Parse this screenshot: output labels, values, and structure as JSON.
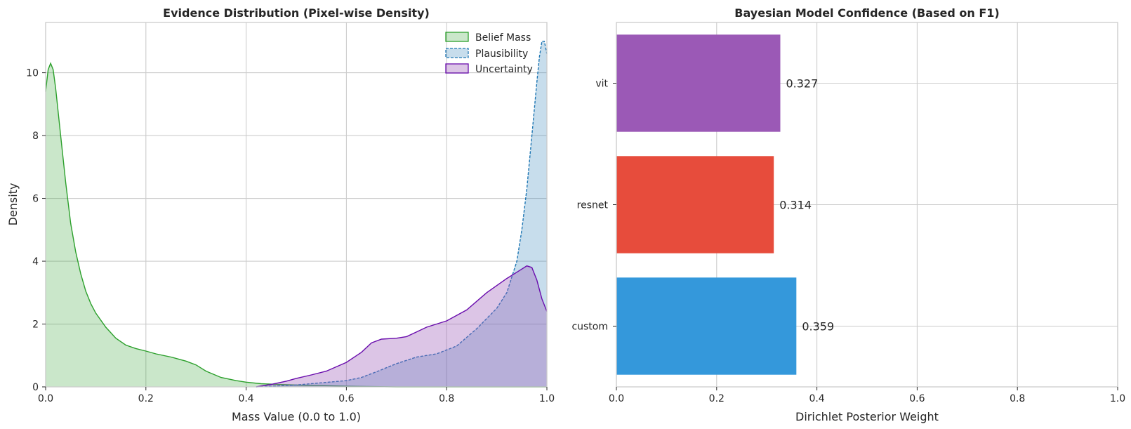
{
  "chart_data": [
    {
      "type": "area",
      "title": "Evidence Distribution (Pixel-wise Density)",
      "xlabel": "Mass Value (0.0 to 1.0)",
      "ylabel": "Density",
      "xlim": [
        0,
        1
      ],
      "ylim": [
        0,
        11.6
      ],
      "xticks": [
        0,
        0.2,
        0.4,
        0.6,
        0.8,
        1.0
      ],
      "xtick_labels": [
        "0.0",
        "0.2",
        "0.4",
        "0.6",
        "0.8",
        "1.0"
      ],
      "yticks": [
        0,
        2,
        4,
        6,
        8,
        10
      ],
      "ytick_labels": [
        "0",
        "2",
        "4",
        "6",
        "8",
        "10"
      ],
      "grid": true,
      "legend_position": "top-right",
      "series": [
        {
          "name": "Belief Mass",
          "line_color": "#2ca02c",
          "fill_color": "#2ca02c",
          "line_style": "solid",
          "x": [
            0.0,
            0.005,
            0.01,
            0.015,
            0.02,
            0.03,
            0.04,
            0.05,
            0.06,
            0.07,
            0.08,
            0.09,
            0.1,
            0.12,
            0.14,
            0.16,
            0.18,
            0.2,
            0.22,
            0.25,
            0.28,
            0.3,
            0.32,
            0.35,
            0.38,
            0.4,
            0.43,
            0.46,
            0.5,
            0.55,
            0.6,
            0.65,
            0.7,
            0.8,
            1.0
          ],
          "y": [
            9.4,
            10.1,
            10.3,
            10.1,
            9.5,
            8.0,
            6.5,
            5.2,
            4.3,
            3.6,
            3.05,
            2.65,
            2.35,
            1.9,
            1.55,
            1.33,
            1.22,
            1.14,
            1.05,
            0.95,
            0.82,
            0.7,
            0.5,
            0.3,
            0.2,
            0.15,
            0.1,
            0.08,
            0.06,
            0.04,
            0.02,
            0.01,
            0.0,
            0.0,
            0.0
          ]
        },
        {
          "name": "Plausibility",
          "line_color": "#1f77b4",
          "fill_color": "#1f77b4",
          "line_style": "dashed",
          "x": [
            0.42,
            0.45,
            0.5,
            0.55,
            0.6,
            0.63,
            0.66,
            0.7,
            0.74,
            0.78,
            0.82,
            0.86,
            0.9,
            0.92,
            0.94,
            0.95,
            0.96,
            0.97,
            0.98,
            0.985,
            0.99,
            0.995,
            1.0
          ],
          "y": [
            0.0,
            0.02,
            0.06,
            0.13,
            0.2,
            0.3,
            0.48,
            0.74,
            0.95,
            1.05,
            1.3,
            1.85,
            2.5,
            3.0,
            4.0,
            5.0,
            6.3,
            8.0,
            9.7,
            10.5,
            11.0,
            11.0,
            10.6
          ]
        },
        {
          "name": "Uncertainty",
          "line_color": "#6a0dad",
          "fill_color": "#9b59b6",
          "line_style": "solid",
          "x": [
            0.42,
            0.45,
            0.48,
            0.5,
            0.53,
            0.56,
            0.6,
            0.63,
            0.65,
            0.67,
            0.7,
            0.72,
            0.74,
            0.76,
            0.8,
            0.84,
            0.88,
            0.92,
            0.94,
            0.96,
            0.97,
            0.98,
            0.99,
            1.0
          ],
          "y": [
            0.0,
            0.08,
            0.18,
            0.27,
            0.38,
            0.5,
            0.78,
            1.1,
            1.4,
            1.52,
            1.55,
            1.6,
            1.75,
            1.9,
            2.1,
            2.45,
            3.0,
            3.45,
            3.65,
            3.85,
            3.8,
            3.4,
            2.8,
            2.4
          ]
        }
      ]
    },
    {
      "type": "bar",
      "orientation": "horizontal",
      "title": "Bayesian Model Confidence (Based on F1)",
      "xlabel": "Dirichlet Posterior Weight",
      "ylabel": "",
      "xlim": [
        0,
        1
      ],
      "xticks": [
        0,
        0.2,
        0.4,
        0.6,
        0.8,
        1.0
      ],
      "xtick_labels": [
        "0.0",
        "0.2",
        "0.4",
        "0.6",
        "0.8",
        "1.0"
      ],
      "grid": true,
      "categories": [
        "custom",
        "resnet",
        "vit"
      ],
      "values": [
        0.359,
        0.314,
        0.327
      ],
      "value_labels": [
        "0.359",
        "0.314",
        "0.327"
      ],
      "colors": [
        "#3498db",
        "#e74c3c",
        "#9b59b6"
      ]
    }
  ]
}
